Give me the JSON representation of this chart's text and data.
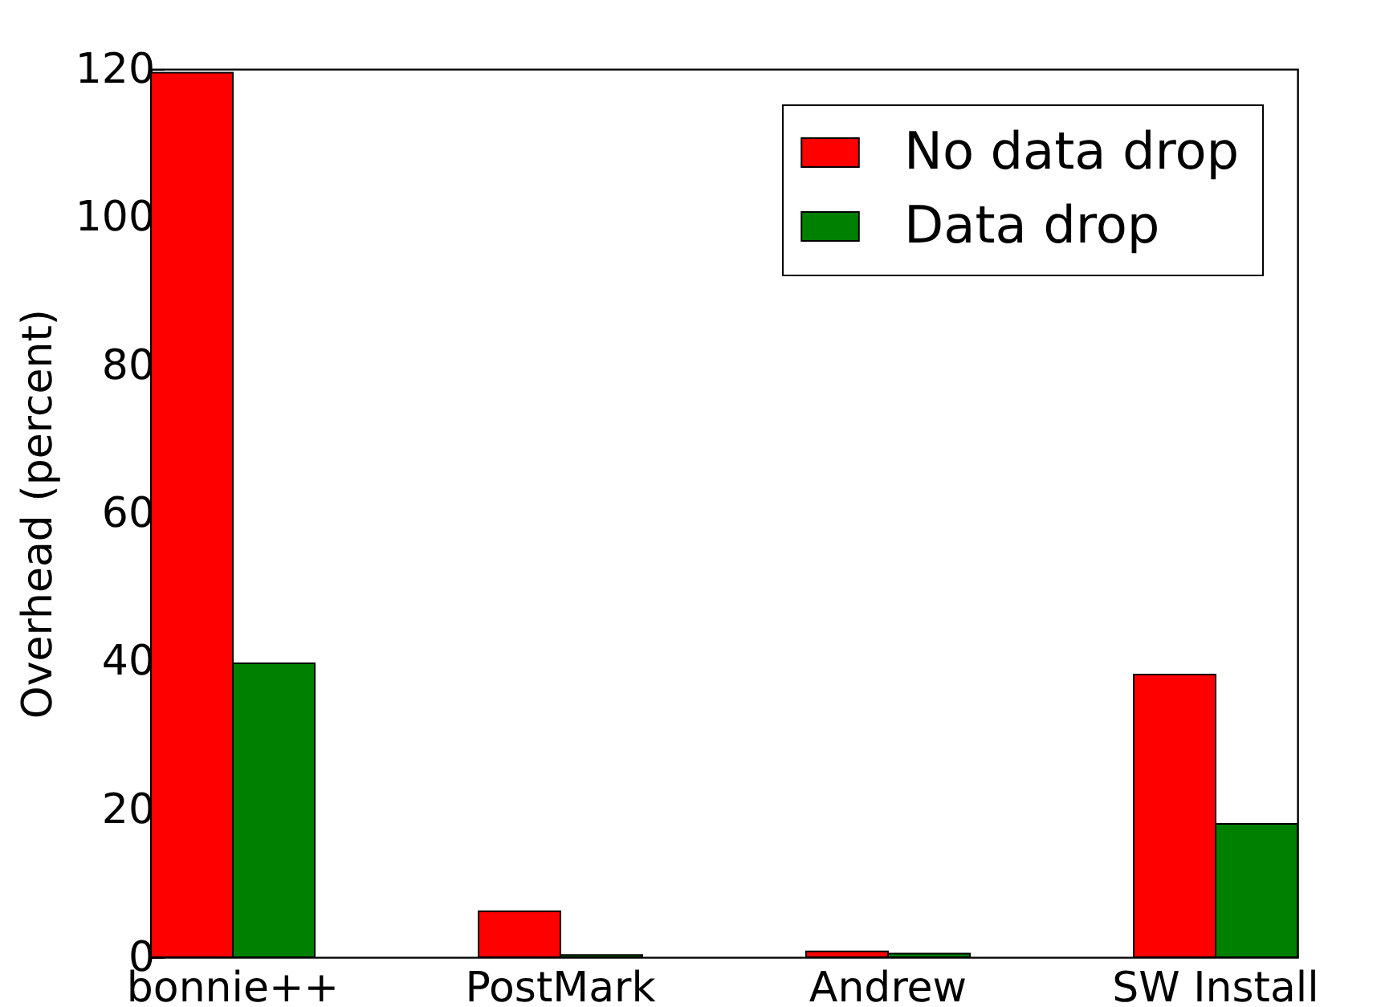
{
  "chart_data": {
    "type": "bar",
    "ylabel": "Overhead (percent)",
    "categories": [
      "bonnie++",
      "PostMark",
      "Andrew",
      "SW Install"
    ],
    "series": [
      {
        "name": "No data drop",
        "color": "#ff0000",
        "values": [
          119.5,
          6.2,
          0.8,
          38.2
        ]
      },
      {
        "name": "Data drop",
        "color": "#008000",
        "values": [
          39.7,
          0.3,
          0.5,
          18.0
        ]
      }
    ],
    "ylim": [
      0,
      120
    ],
    "yticks": [
      0,
      20,
      40,
      60,
      80,
      100,
      120
    ],
    "grid": false,
    "legend": "top right"
  }
}
